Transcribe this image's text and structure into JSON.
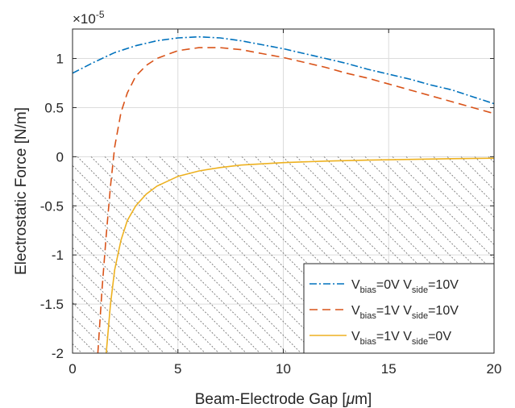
{
  "chart_data": {
    "type": "line",
    "xlabel": "Beam-Electrode Gap [μm]",
    "ylabel": "Electrostatic Force [N/m]",
    "exponent_label": "×10",
    "exponent_power": "-5",
    "xlim": [
      0,
      20
    ],
    "ylim": [
      -2,
      1.3
    ],
    "xticks": [
      0,
      5,
      10,
      15,
      20
    ],
    "yticks": [
      -2,
      -1.5,
      -1,
      -0.5,
      0,
      0.5,
      1
    ],
    "xtick_labels": [
      "0",
      "5",
      "10",
      "15",
      "20"
    ],
    "ytick_labels": [
      "-2",
      "-1.5",
      "-1",
      "-0.5",
      "0",
      "0.5",
      "1"
    ],
    "grid": true,
    "hatched_region": "negative force (y < 0)",
    "legend_position": "bottom-right",
    "series": [
      {
        "legend": {
          "main1": "V",
          "sub1": "bias",
          "eq1": "=0V V",
          "sub2": "side",
          "eq2": "=10V"
        },
        "color": "#0072BD",
        "style": "dash-dot",
        "x": [
          0,
          1,
          2,
          3,
          4,
          5,
          6,
          7,
          8,
          9,
          10,
          11,
          12,
          13,
          14,
          15,
          16,
          17,
          18,
          19,
          20
        ],
        "y": [
          0.85,
          0.96,
          1.06,
          1.13,
          1.18,
          1.21,
          1.22,
          1.21,
          1.18,
          1.14,
          1.1,
          1.05,
          1.0,
          0.95,
          0.89,
          0.84,
          0.79,
          0.73,
          0.68,
          0.61,
          0.54
        ]
      },
      {
        "legend": {
          "main1": "V",
          "sub1": "bias",
          "eq1": "=1V V",
          "sub2": "side",
          "eq2": "=10V"
        },
        "color": "#D95319",
        "style": "dashed",
        "x": [
          1.2,
          1.4,
          1.6,
          1.8,
          2.0,
          2.3,
          2.6,
          3.0,
          3.5,
          4,
          5,
          6,
          7,
          8,
          9,
          10,
          11,
          12,
          13,
          14,
          15,
          16,
          17,
          18,
          19,
          20
        ],
        "y": [
          -2.0,
          -1.35,
          -0.8,
          -0.3,
          0.1,
          0.45,
          0.65,
          0.82,
          0.93,
          1.0,
          1.08,
          1.11,
          1.11,
          1.09,
          1.05,
          1.01,
          0.96,
          0.91,
          0.85,
          0.8,
          0.74,
          0.68,
          0.62,
          0.56,
          0.5,
          0.44
        ]
      },
      {
        "legend": {
          "main1": "V",
          "sub1": "bias",
          "eq1": "=1V V",
          "sub2": "side",
          "eq2": "=0V"
        },
        "color": "#EDB120",
        "style": "solid",
        "x": [
          1.6,
          1.8,
          2.0,
          2.3,
          2.6,
          3.0,
          3.5,
          4,
          5,
          6,
          7,
          8,
          10,
          12,
          14,
          16,
          18,
          20
        ],
        "y": [
          -2.0,
          -1.5,
          -1.15,
          -0.85,
          -0.65,
          -0.5,
          -0.38,
          -0.3,
          -0.2,
          -0.145,
          -0.11,
          -0.085,
          -0.06,
          -0.045,
          -0.035,
          -0.027,
          -0.02,
          -0.015
        ]
      }
    ]
  }
}
